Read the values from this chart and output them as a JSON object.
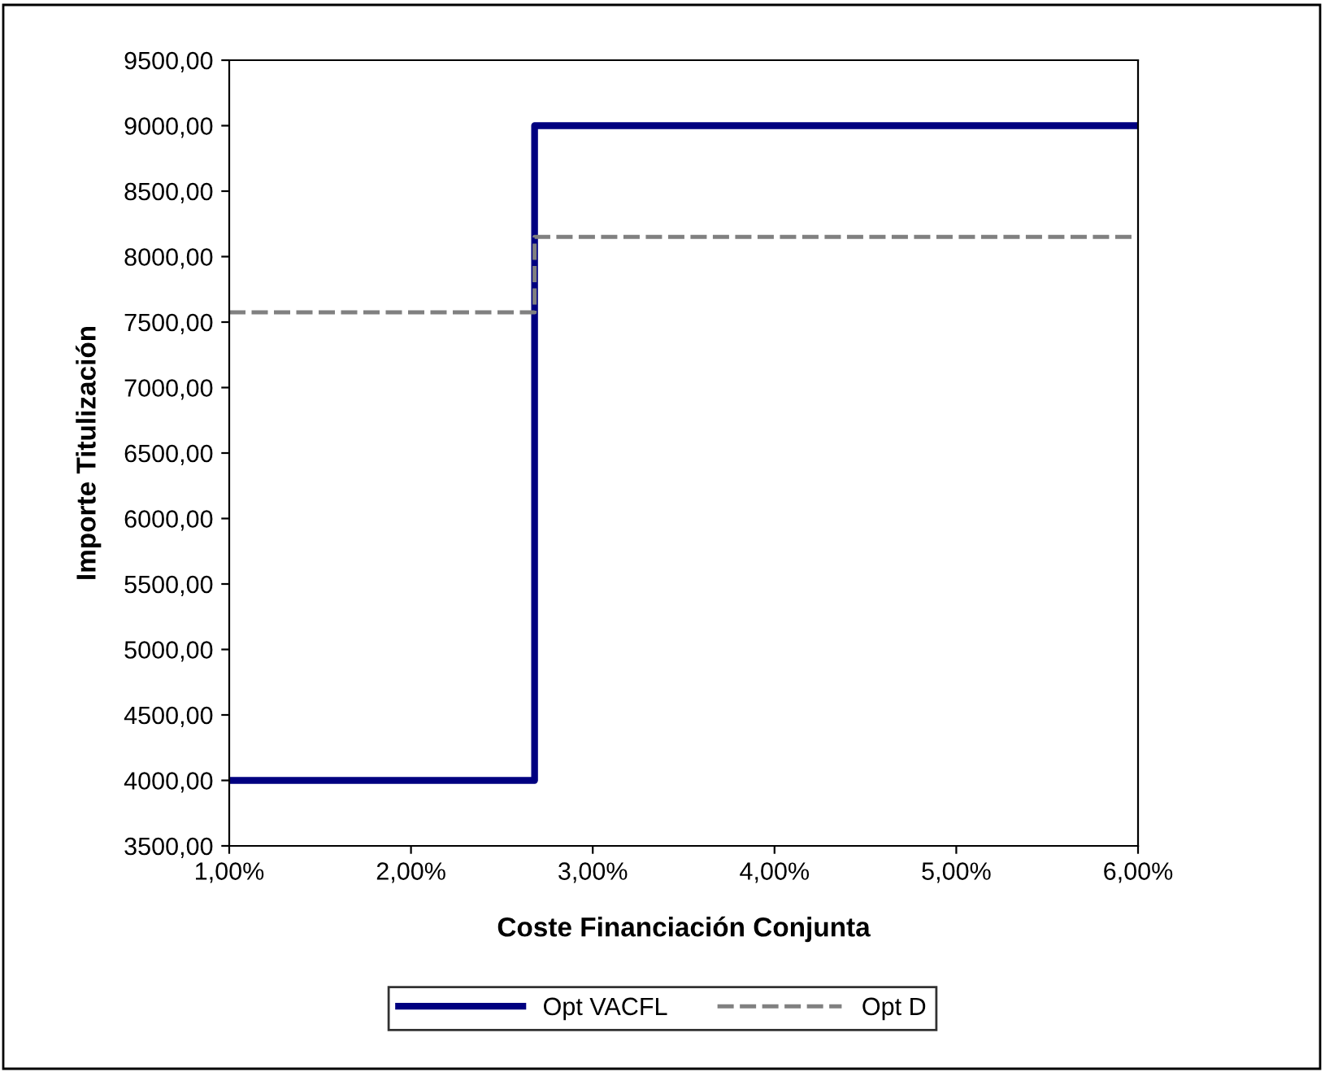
{
  "chart_data": {
    "type": "step",
    "xlabel": "Coste Financiación Conjunta",
    "ylabel": "Importe Titulización",
    "x": [
      1,
      2.68,
      6
    ],
    "series": [
      {
        "name": "Opt VACFL",
        "color": "#000080",
        "values": [
          4000,
          9000,
          9000
        ],
        "line_style": "solid"
      },
      {
        "name": "Opt D",
        "color": "#808080",
        "values": [
          7575,
          8150,
          8150
        ],
        "line_style": "dashed"
      }
    ],
    "xlim": [
      1,
      6
    ],
    "xticks": [
      {
        "value": 1,
        "label": "1,00%"
      },
      {
        "value": 2,
        "label": "2,00%"
      },
      {
        "value": 3,
        "label": "3,00%"
      },
      {
        "value": 4,
        "label": "4,00%"
      },
      {
        "value": 5,
        "label": "5,00%"
      },
      {
        "value": 6,
        "label": "6,00%"
      }
    ],
    "ylim": [
      3500,
      9500
    ],
    "yticks": [
      {
        "value": 3500,
        "label": "3500,00"
      },
      {
        "value": 4000,
        "label": "4000,00"
      },
      {
        "value": 4500,
        "label": "4500,00"
      },
      {
        "value": 5000,
        "label": "5000,00"
      },
      {
        "value": 5500,
        "label": "5500,00"
      },
      {
        "value": 6000,
        "label": "6000,00"
      },
      {
        "value": 6500,
        "label": "6500,00"
      },
      {
        "value": 7000,
        "label": "7000,00"
      },
      {
        "value": 7500,
        "label": "7500,00"
      },
      {
        "value": 8000,
        "label": "8000,00"
      },
      {
        "value": 8500,
        "label": "8500,00"
      },
      {
        "value": 9000,
        "label": "9000,00"
      },
      {
        "value": 9500,
        "label": "9500,00"
      }
    ],
    "grid": false,
    "legend": "bottom",
    "marker": "none"
  }
}
